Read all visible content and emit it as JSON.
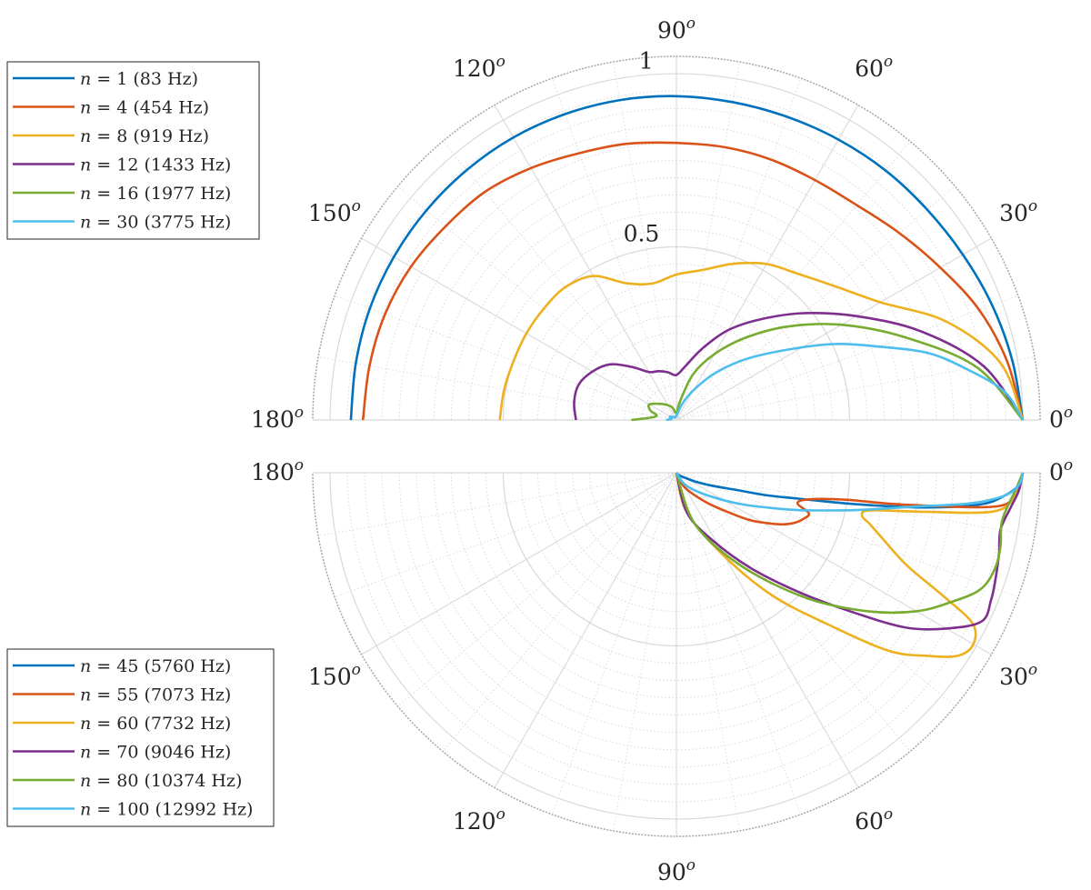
{
  "chart_data": [
    {
      "type": "polar-line",
      "title": "",
      "position": "top",
      "theta_range_deg": [
        0,
        180
      ],
      "r_range": [
        0,
        1.05
      ],
      "radial_tick_labels": [
        "0.5",
        "1"
      ],
      "radial_tick_values": [
        0.5,
        1.0
      ],
      "angle_ticks_deg": [
        0,
        30,
        60,
        90,
        120,
        150,
        180
      ],
      "angle_tick_labels": [
        "0",
        "30",
        "60",
        "90",
        "120",
        "150",
        "180"
      ],
      "angle_unit_superscript": "o",
      "grid": true,
      "legend_position": "top-left",
      "series": [
        {
          "name": "n = 1 (83 Hz)",
          "n": "1",
          "freq": "(83 Hz)",
          "color": "#0072BD",
          "points": [
            [
              0,
              1.0
            ],
            [
              10,
              0.985
            ],
            [
              20,
              0.97
            ],
            [
              30,
              0.955
            ],
            [
              40,
              0.945
            ],
            [
              50,
              0.94
            ],
            [
              60,
              0.935
            ],
            [
              70,
              0.932
            ],
            [
              80,
              0.932
            ],
            [
              90,
              0.935
            ],
            [
              100,
              0.938
            ],
            [
              110,
              0.94
            ],
            [
              120,
              0.942
            ],
            [
              130,
              0.942
            ],
            [
              140,
              0.942
            ],
            [
              150,
              0.942
            ],
            [
              160,
              0.942
            ],
            [
              170,
              0.94
            ],
            [
              180,
              0.94
            ]
          ]
        },
        {
          "name": "n = 4 (454 Hz)",
          "n": "4",
          "freq": "(454 Hz)",
          "color": "#D95319",
          "points": [
            [
              0,
              1.0
            ],
            [
              10,
              0.97
            ],
            [
              20,
              0.93
            ],
            [
              30,
              0.88
            ],
            [
              40,
              0.84
            ],
            [
              50,
              0.81
            ],
            [
              60,
              0.8
            ],
            [
              70,
              0.8
            ],
            [
              80,
              0.8
            ],
            [
              90,
              0.8
            ],
            [
              100,
              0.81
            ],
            [
              110,
              0.82
            ],
            [
              120,
              0.84
            ],
            [
              130,
              0.86
            ],
            [
              140,
              0.87
            ],
            [
              150,
              0.885
            ],
            [
              160,
              0.895
            ],
            [
              170,
              0.9
            ],
            [
              180,
              0.905
            ]
          ]
        },
        {
          "name": "n = 8 (919 Hz)",
          "n": "8",
          "freq": "(919 Hz)",
          "color": "#EDB120",
          "points": [
            [
              0,
              1.0
            ],
            [
              10,
              0.95
            ],
            [
              20,
              0.83
            ],
            [
              30,
              0.68
            ],
            [
              40,
              0.6
            ],
            [
              50,
              0.55
            ],
            [
              60,
              0.52
            ],
            [
              70,
              0.48
            ],
            [
              80,
              0.44
            ],
            [
              90,
              0.42
            ],
            [
              100,
              0.4
            ],
            [
              110,
              0.42
            ],
            [
              120,
              0.48
            ],
            [
              130,
              0.5
            ],
            [
              140,
              0.5
            ],
            [
              150,
              0.5
            ],
            [
              160,
              0.5
            ],
            [
              170,
              0.505
            ],
            [
              180,
              0.51
            ]
          ]
        },
        {
          "name": "n = 12 (1433 Hz)",
          "n": "12",
          "freq": "(1433 Hz)",
          "color": "#7E2F8E",
          "points": [
            [
              0,
              1.0
            ],
            [
              10,
              0.9
            ],
            [
              20,
              0.75
            ],
            [
              30,
              0.6
            ],
            [
              40,
              0.48
            ],
            [
              50,
              0.38
            ],
            [
              60,
              0.3
            ],
            [
              70,
              0.22
            ],
            [
              80,
              0.16
            ],
            [
              90,
              0.13
            ],
            [
              100,
              0.14
            ],
            [
              110,
              0.15
            ],
            [
              120,
              0.16
            ],
            [
              130,
              0.2
            ],
            [
              140,
              0.25
            ],
            [
              150,
              0.28
            ],
            [
              160,
              0.3
            ],
            [
              170,
              0.3
            ],
            [
              180,
              0.29
            ]
          ]
        },
        {
          "name": "n = 16 (1977 Hz)",
          "n": "16",
          "freq": "(1977 Hz)",
          "color": "#77AC30",
          "points": [
            [
              0,
              1.0
            ],
            [
              10,
              0.88
            ],
            [
              20,
              0.7
            ],
            [
              30,
              0.55
            ],
            [
              40,
              0.42
            ],
            [
              50,
              0.31
            ],
            [
              60,
              0.22
            ],
            [
              70,
              0.14
            ],
            [
              80,
              0.05
            ],
            [
              90,
              0.02
            ],
            [
              110,
              0.04
            ],
            [
              130,
              0.06
            ],
            [
              150,
              0.09
            ],
            [
              160,
              0.08
            ],
            [
              170,
              0.06
            ],
            [
              180,
              0.13
            ]
          ]
        },
        {
          "name": "n = 30 (3775 Hz)",
          "n": "30",
          "freq": "(3775 Hz)",
          "color": "#4DBEEE",
          "points": [
            [
              0,
              1.0
            ],
            [
              5,
              0.95
            ],
            [
              10,
              0.85
            ],
            [
              15,
              0.75
            ],
            [
              20,
              0.62
            ],
            [
              25,
              0.52
            ],
            [
              30,
              0.42
            ],
            [
              40,
              0.28
            ],
            [
              50,
              0.18
            ],
            [
              60,
              0.1
            ],
            [
              70,
              0.05
            ],
            [
              80,
              0.02
            ],
            [
              100,
              0.01
            ],
            [
              130,
              0.01
            ],
            [
              150,
              0.02
            ],
            [
              160,
              0.02
            ],
            [
              170,
              0.015
            ],
            [
              180,
              0.03
            ]
          ]
        }
      ]
    },
    {
      "type": "polar-line",
      "title": "",
      "position": "bottom",
      "theta_range_deg": [
        0,
        180
      ],
      "r_range": [
        0,
        1.05
      ],
      "radial_tick_labels": [],
      "radial_tick_values": [
        0.5,
        1.0
      ],
      "angle_ticks_deg": [
        0,
        30,
        60,
        90,
        120,
        150,
        180
      ],
      "angle_tick_labels": [
        "0",
        "30",
        "60",
        "90",
        "120",
        "150",
        "180"
      ],
      "angle_unit_superscript": "o",
      "grid": true,
      "legend_position": "bottom-left",
      "series": [
        {
          "name": "n = 45 (5760 Hz)",
          "n": "45",
          "freq": "(5760 Hz)",
          "color": "#0072BD",
          "points": [
            [
              0,
              1.0
            ],
            [
              2,
              0.99
            ],
            [
              4,
              0.95
            ],
            [
              6,
              0.88
            ],
            [
              8,
              0.72
            ],
            [
              10,
              0.52
            ],
            [
              12,
              0.36
            ],
            [
              14,
              0.27
            ],
            [
              16,
              0.18
            ],
            [
              20,
              0.11
            ],
            [
              25,
              0.06
            ],
            [
              30,
              0.03
            ],
            [
              45,
              0.01
            ],
            [
              90,
              0.0
            ]
          ]
        },
        {
          "name": "n = 55 (7073 Hz)",
          "n": "55",
          "freq": "(7073 Hz)",
          "color": "#D95319",
          "points": [
            [
              0,
              1.0
            ],
            [
              3,
              0.98
            ],
            [
              6,
              0.93
            ],
            [
              8,
              0.66
            ],
            [
              9,
              0.5
            ],
            [
              11,
              0.4
            ],
            [
              14,
              0.36
            ],
            [
              17,
              0.4
            ],
            [
              20,
              0.39
            ],
            [
              23,
              0.37
            ],
            [
              26,
              0.34
            ],
            [
              29,
              0.3
            ],
            [
              33,
              0.25
            ],
            [
              38,
              0.18
            ],
            [
              45,
              0.12
            ],
            [
              60,
              0.05
            ],
            [
              90,
              0.0
            ]
          ]
        },
        {
          "name": "n = 60 (7732 Hz)",
          "n": "60",
          "freq": "(7732 Hz)",
          "color": "#EDB120",
          "points": [
            [
              0,
              1.0
            ],
            [
              4,
              0.98
            ],
            [
              7,
              0.92
            ],
            [
              9,
              0.72
            ],
            [
              11,
              0.57
            ],
            [
              13,
              0.55
            ],
            [
              15,
              0.58
            ],
            [
              18,
              0.63
            ],
            [
              22,
              0.72
            ],
            [
              25,
              0.86
            ],
            [
              27,
              0.96
            ],
            [
              30,
              0.99
            ],
            [
              33,
              0.97
            ],
            [
              36,
              0.9
            ],
            [
              40,
              0.8
            ],
            [
              45,
              0.62
            ],
            [
              52,
              0.45
            ],
            [
              60,
              0.28
            ],
            [
              75,
              0.12
            ],
            [
              90,
              0.0
            ]
          ]
        },
        {
          "name": "n = 70 (9046 Hz)",
          "n": "70",
          "freq": "(9046 Hz)",
          "color": "#7E2F8E",
          "points": [
            [
              0,
              1.0
            ],
            [
              3,
              0.99
            ],
            [
              6,
              0.97
            ],
            [
              10,
              0.95
            ],
            [
              14,
              0.96
            ],
            [
              18,
              0.97
            ],
            [
              22,
              0.98
            ],
            [
              26,
              0.98
            ],
            [
              30,
              0.9
            ],
            [
              34,
              0.8
            ],
            [
              38,
              0.66
            ],
            [
              44,
              0.5
            ],
            [
              52,
              0.35
            ],
            [
              62,
              0.22
            ],
            [
              75,
              0.12
            ],
            [
              90,
              0.0
            ]
          ]
        },
        {
          "name": "n = 80 (10374 Hz)",
          "n": "80",
          "freq": "(10374 Hz)",
          "color": "#77AC30",
          "points": [
            [
              0,
              1.0
            ],
            [
              3,
              0.98
            ],
            [
              6,
              0.96
            ],
            [
              9,
              0.95
            ],
            [
              13,
              0.96
            ],
            [
              17,
              0.96
            ],
            [
              21,
              0.94
            ],
            [
              25,
              0.88
            ],
            [
              30,
              0.8
            ],
            [
              36,
              0.68
            ],
            [
              44,
              0.52
            ],
            [
              55,
              0.33
            ],
            [
              70,
              0.16
            ],
            [
              90,
              0.0
            ]
          ]
        },
        {
          "name": "n = 100 (12992 Hz)",
          "n": "100",
          "freq": "(12992 Hz)",
          "color": "#4DBEEE",
          "points": [
            [
              0,
              1.0
            ],
            [
              2,
              0.99
            ],
            [
              4,
              0.95
            ],
            [
              6,
              0.85
            ],
            [
              8,
              0.7
            ],
            [
              10,
              0.6
            ],
            [
              12,
              0.52
            ],
            [
              14,
              0.45
            ],
            [
              17,
              0.37
            ],
            [
              20,
              0.3
            ],
            [
              25,
              0.22
            ],
            [
              30,
              0.16
            ],
            [
              40,
              0.09
            ],
            [
              55,
              0.04
            ],
            [
              90,
              0.0
            ]
          ]
        }
      ]
    }
  ]
}
